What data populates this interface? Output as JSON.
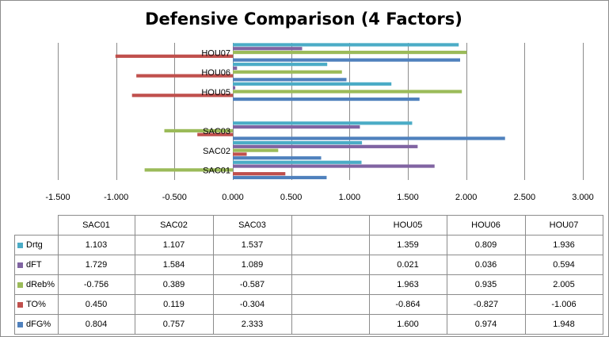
{
  "chart_data": {
    "type": "bar",
    "orientation": "horizontal",
    "title": "Defensive Comparison (4 Factors)",
    "categories": [
      "SAC01",
      "SAC02",
      "SAC03",
      "",
      "HOU05",
      "HOU06",
      "HOU07"
    ],
    "series": [
      {
        "name": "Drtg",
        "color": "#4bacc6",
        "values": [
          1.103,
          1.107,
          1.537,
          null,
          1.359,
          0.809,
          1.936
        ]
      },
      {
        "name": "dFT",
        "color": "#8064a2",
        "values": [
          1.729,
          1.584,
          1.089,
          null,
          0.021,
          0.036,
          0.594
        ]
      },
      {
        "name": "dReb%",
        "color": "#9bbb59",
        "values": [
          -0.756,
          0.389,
          -0.587,
          null,
          1.963,
          0.935,
          2.005
        ]
      },
      {
        "name": "TO%",
        "color": "#c0504d",
        "values": [
          0.45,
          0.119,
          -0.304,
          null,
          -0.864,
          -0.827,
          -1.006
        ]
      },
      {
        "name": "dFG%",
        "color": "#4f81bd",
        "values": [
          0.804,
          0.757,
          2.333,
          null,
          1.6,
          0.974,
          1.948
        ]
      }
    ],
    "xlim": [
      -1.5,
      3.0
    ],
    "xticks": [
      -1.5,
      -1.0,
      -0.5,
      0.0,
      0.5,
      1.0,
      1.5,
      2.0,
      2.5,
      3.0
    ],
    "tick_labels": [
      "-1.500",
      "-1.000",
      "-0.500",
      "0.000",
      "0.500",
      "1.000",
      "1.500",
      "2.000",
      "2.500",
      "3.000"
    ],
    "grid": "vertical",
    "legend": "data-table",
    "table": {
      "header": [
        "SAC01",
        "SAC02",
        "SAC03",
        "",
        "HOU05",
        "HOU06",
        "HOU07"
      ],
      "rows": [
        {
          "label": "Drtg",
          "cells": [
            "1.103",
            "1.107",
            "1.537",
            "",
            "1.359",
            "0.809",
            "1.936"
          ]
        },
        {
          "label": "dFT",
          "cells": [
            "1.729",
            "1.584",
            "1.089",
            "",
            "0.021",
            "0.036",
            "0.594"
          ]
        },
        {
          "label": "dReb%",
          "cells": [
            "-0.756",
            "0.389",
            "-0.587",
            "",
            "1.963",
            "0.935",
            "2.005"
          ]
        },
        {
          "label": "TO%",
          "cells": [
            "0.450",
            "0.119",
            "-0.304",
            "",
            "-0.864",
            "-0.827",
            "-1.006"
          ]
        },
        {
          "label": "dFG%",
          "cells": [
            "0.804",
            "0.757",
            "2.333",
            "",
            "1.600",
            "0.974",
            "1.948"
          ]
        }
      ]
    }
  }
}
